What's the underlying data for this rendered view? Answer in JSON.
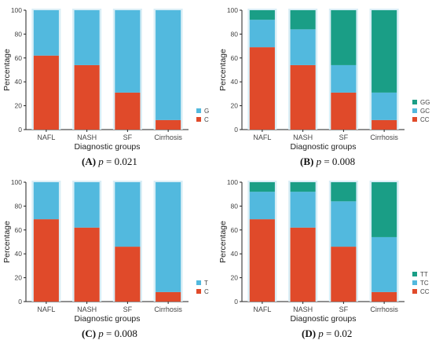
{
  "chart_data": [
    {
      "id": "A",
      "type": "bar",
      "stacked": true,
      "categories": [
        "NAFL",
        "NASH",
        "SF",
        "Cirrhosis"
      ],
      "series": [
        {
          "name": "C",
          "color": "#e04a2a",
          "values": [
            62,
            54,
            31,
            8
          ]
        },
        {
          "name": "G",
          "color": "#52b9de",
          "values": [
            38,
            46,
            69,
            92
          ]
        }
      ],
      "xlabel": "Diagnostic groups",
      "ylabel": "Percentage",
      "ylim": [
        0,
        100
      ],
      "yticks": [
        "0",
        "20",
        "40",
        "60",
        "80",
        "100"
      ],
      "legend_position": "right",
      "caption": {
        "letter": "(A)",
        "stat": "p",
        "value": " = 0.021"
      }
    },
    {
      "id": "B",
      "type": "bar",
      "stacked": true,
      "categories": [
        "NAFL",
        "NASH",
        "SF",
        "Cirrhosis"
      ],
      "series": [
        {
          "name": "CC",
          "color": "#e04a2a",
          "values": [
            69,
            54,
            31,
            8
          ]
        },
        {
          "name": "GC",
          "color": "#52b9de",
          "values": [
            23,
            30,
            23,
            23
          ]
        },
        {
          "name": "GG",
          "color": "#1a9e86",
          "values": [
            8,
            16,
            46,
            69
          ]
        }
      ],
      "xlabel": "Diagnostic groups",
      "ylabel": "Percentage",
      "ylim": [
        0,
        100
      ],
      "yticks": [
        "0",
        "20",
        "40",
        "60",
        "80",
        "100"
      ],
      "legend_position": "right",
      "caption": {
        "letter": "(B)",
        "stat": "p",
        "value": " = 0.008"
      }
    },
    {
      "id": "C",
      "type": "bar",
      "stacked": true,
      "categories": [
        "NAFL",
        "NASH",
        "SF",
        "Cirrhosis"
      ],
      "series": [
        {
          "name": "C",
          "color": "#e04a2a",
          "values": [
            69,
            62,
            46,
            8
          ]
        },
        {
          "name": "T",
          "color": "#52b9de",
          "values": [
            31,
            38,
            54,
            92
          ]
        }
      ],
      "xlabel": "Diagnostic groups",
      "ylabel": "Percentage",
      "ylim": [
        0,
        100
      ],
      "yticks": [
        "0",
        "20",
        "40",
        "60",
        "80",
        "100"
      ],
      "legend_position": "right",
      "caption": {
        "letter": "(C)",
        "stat": "p",
        "value": " = 0.008"
      }
    },
    {
      "id": "D",
      "type": "bar",
      "stacked": true,
      "categories": [
        "NAFL",
        "NASH",
        "SF",
        "Cirrhosis"
      ],
      "series": [
        {
          "name": "CC",
          "color": "#e04a2a",
          "values": [
            69,
            62,
            46,
            8
          ]
        },
        {
          "name": "TC",
          "color": "#52b9de",
          "values": [
            23,
            30,
            38,
            46
          ]
        },
        {
          "name": "TT",
          "color": "#1a9e86",
          "values": [
            8,
            8,
            16,
            46
          ]
        }
      ],
      "xlabel": "Diagnostic groups",
      "ylabel": "Percentage",
      "ylim": [
        0,
        100
      ],
      "yticks": [
        "0",
        "20",
        "40",
        "60",
        "80",
        "100"
      ],
      "legend_position": "right",
      "caption": {
        "letter": "(D)",
        "stat": "p",
        "value": " = 0.02"
      }
    }
  ]
}
